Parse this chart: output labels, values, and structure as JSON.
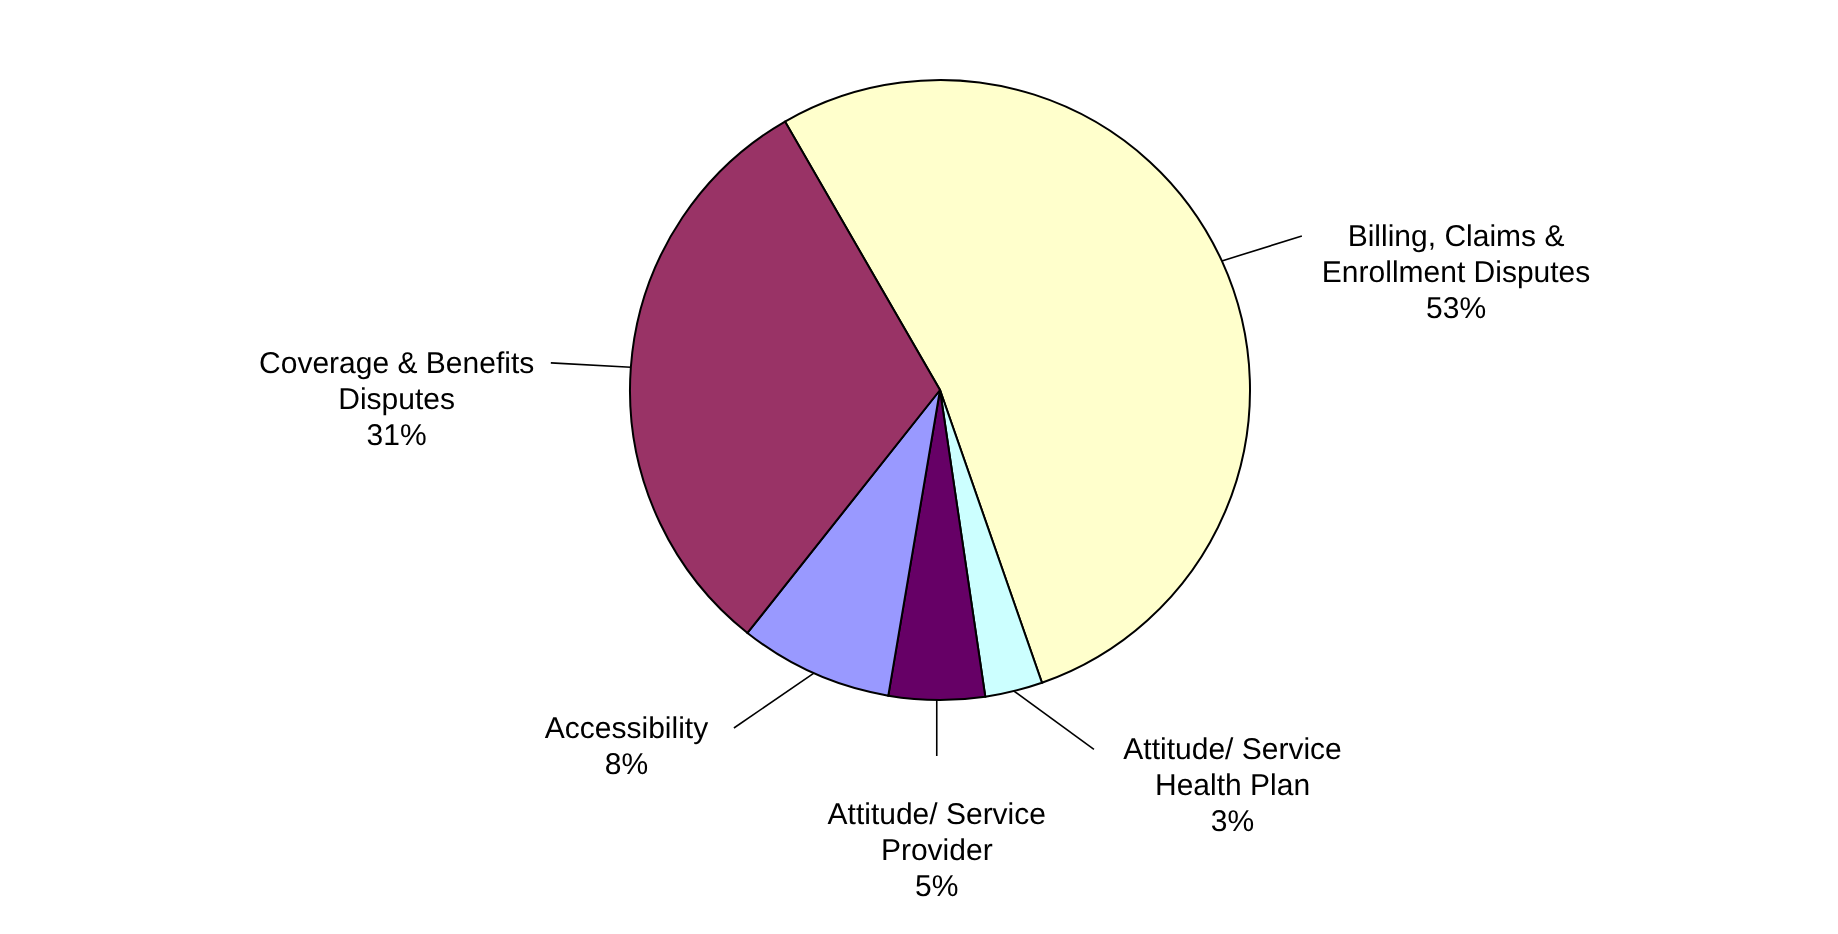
{
  "chart_data": {
    "type": "pie",
    "categories": [
      "Billing, Claims &\nEnrollment Disputes",
      "Attitude/ Service\nHealth Plan",
      "Attitude/ Service\nProvider",
      "Accessibility",
      "Coverage & Benefits\nDisputes"
    ],
    "values": [
      53,
      3,
      5,
      8,
      31
    ],
    "colors": [
      "#ffffcc",
      "#ccffff",
      "#660066",
      "#9999ff",
      "#993366"
    ],
    "value_labels": [
      "53%",
      "3%",
      "5%",
      "8%",
      "31%"
    ]
  }
}
